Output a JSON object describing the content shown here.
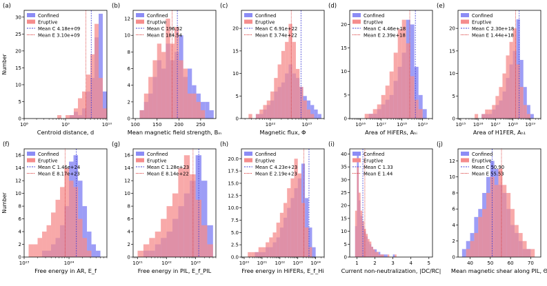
{
  "colors": {
    "confined": "#8c8cf5",
    "eruptive": "#f58c8c",
    "conf_line": "#3b3bd6",
    "erup_line": "#d62a2a"
  },
  "ylabel": "Number",
  "legend_labels": [
    "Confined",
    "Eruptive"
  ],
  "chart_data": [
    {
      "panel": "(a)",
      "type": "bar",
      "xlabel": "Centroid distance, d",
      "scale": "log",
      "xlim": [
        100000000.0,
        10000000000.0
      ],
      "ylim": [
        0,
        32
      ],
      "yticks": [
        0,
        5,
        10,
        15,
        20,
        25,
        30
      ],
      "xticks": [
        {
          "v": 100000000.0,
          "t": "10⁸"
        },
        {
          "v": 1000000000.0,
          "t": "10⁹"
        },
        {
          "v": 10000000000.0,
          "t": "10¹⁰"
        }
      ],
      "bin_edges": [
        8.8,
        8.9,
        9.0,
        9.1,
        9.2,
        9.3,
        9.4,
        9.5,
        9.6,
        9.7,
        9.8,
        9.9,
        10.0
      ],
      "series": [
        {
          "name": "Confined",
          "values": [
            0,
            0,
            0,
            1,
            2,
            1,
            3,
            8,
            12,
            24,
            31,
            8,
            2
          ]
        },
        {
          "name": "Eruptive",
          "values": [
            1,
            0,
            1,
            1,
            3,
            6,
            8,
            13,
            19,
            28,
            12,
            3,
            0
          ]
        }
      ],
      "means": [
        {
          "label": "Mean C 4.18e+09",
          "value": 4180000000.0
        },
        {
          "label": "Mean E 3.10e+09",
          "value": 3100000000.0
        }
      ]
    },
    {
      "panel": "(b)",
      "type": "bar",
      "xlabel": "Mean magnetic field strength, Bₘ",
      "scale": "linear",
      "xlim": [
        95,
        285
      ],
      "ylim": [
        0,
        13
      ],
      "yticks": [
        0,
        2,
        4,
        6,
        8,
        10,
        12
      ],
      "xticks": [
        {
          "v": 100,
          "t": "100"
        },
        {
          "v": 150,
          "t": "150"
        },
        {
          "v": 200,
          "t": "200"
        },
        {
          "v": 250,
          "t": "250"
        }
      ],
      "bin_edges": [
        110,
        120,
        130,
        140,
        150,
        160,
        170,
        180,
        190,
        200,
        210,
        220,
        230,
        240,
        250,
        260,
        270,
        280
      ],
      "series": [
        {
          "name": "Confined",
          "values": [
            1,
            2,
            3,
            5,
            7,
            6,
            9,
            7,
            8,
            10,
            5,
            6,
            4,
            3,
            2,
            2,
            1
          ]
        },
        {
          "name": "Eruptive",
          "values": [
            1,
            3,
            5,
            7,
            9,
            8,
            12,
            9,
            11,
            7,
            6,
            3,
            3,
            2,
            1,
            0,
            0
          ]
        }
      ],
      "means": [
        {
          "label": "Mean C 196.52",
          "value": 196.52
        },
        {
          "label": "Mean E 184.54",
          "value": 184.54
        }
      ]
    },
    {
      "panel": "(c)",
      "type": "bar",
      "xlabel": "Magnetic flux, Φ",
      "scale": "log",
      "xlim": [
        1.6e+21,
        3e+23
      ],
      "ylim": [
        0,
        24
      ],
      "yticks": [
        0,
        5,
        10,
        15,
        20
      ],
      "xticks": [
        {
          "v": 1e+22,
          "t": "10²²"
        },
        {
          "v": 1e+23,
          "t": "10²³"
        }
      ],
      "bin_edges": [
        21.4,
        21.5,
        21.6,
        21.7,
        21.8,
        21.9,
        22.0,
        22.1,
        22.2,
        22.3,
        22.4,
        22.5,
        22.6,
        22.7,
        22.8,
        22.9,
        23.0,
        23.1,
        23.2,
        23.3,
        23.4
      ],
      "series": [
        {
          "name": "Confined",
          "values": [
            0,
            0,
            1,
            1,
            2,
            3,
            4,
            6,
            7,
            8,
            10,
            12,
            10,
            9,
            7,
            5,
            4,
            3,
            2,
            1
          ]
        },
        {
          "name": "Eruptive",
          "values": [
            1,
            0,
            1,
            2,
            3,
            4,
            6,
            9,
            12,
            15,
            17,
            21,
            17,
            11,
            7,
            4,
            2,
            1,
            0,
            0
          ]
        }
      ],
      "means": [
        {
          "label": "Mean C 6.91e+22",
          "value": 6.91e+22
        },
        {
          "label": "Mean E 3.74e+22",
          "value": 3.74e+22
        }
      ]
    },
    {
      "panel": "(d)",
      "type": "bar",
      "xlabel": "Area of HiFERs, Aₕᵢ",
      "scale": "log",
      "xlim": [
        3000000000000000.0,
        3e+19
      ],
      "ylim": [
        0,
        23
      ],
      "yticks": [
        0,
        5,
        10,
        15,
        20
      ],
      "xticks": [
        {
          "v": 1e+16,
          "t": "10¹⁶"
        },
        {
          "v": 1e+17,
          "t": "10¹⁷"
        },
        {
          "v": 1e+18,
          "t": "10¹⁸"
        },
        {
          "v": 1e+19,
          "t": "10¹⁹"
        }
      ],
      "bin_edges": [
        16.2,
        16.4,
        16.6,
        16.8,
        17.0,
        17.2,
        17.4,
        17.6,
        17.8,
        18.0,
        18.2,
        18.4,
        18.6,
        18.8,
        19.0,
        19.2
      ],
      "series": [
        {
          "name": "Confined",
          "values": [
            0,
            1,
            1,
            2,
            3,
            4,
            5,
            8,
            11,
            14,
            21,
            20,
            11,
            5,
            2
          ]
        },
        {
          "name": "Eruptive",
          "values": [
            1,
            1,
            2,
            3,
            5,
            7,
            10,
            14,
            19,
            21,
            16,
            9,
            4,
            2,
            0
          ]
        }
      ],
      "means": [
        {
          "label": "Mean C 4.46e+18",
          "value": 4.46e+18
        },
        {
          "label": "Mean E 2.39e+18",
          "value": 2.39e+18
        }
      ]
    },
    {
      "panel": "(e)",
      "type": "bar",
      "xlabel": "Area of H1FER, Aₕ₁",
      "scale": "log",
      "xlim": [
        700000000000000.0,
        4e+19
      ],
      "ylim": [
        0,
        24
      ],
      "yticks": [
        0,
        5,
        10,
        15,
        20
      ],
      "xticks": [
        {
          "v": 1000000000000000.0,
          "t": "10¹⁵"
        },
        {
          "v": 1e+16,
          "t": "10¹⁶"
        },
        {
          "v": 1e+17,
          "t": "10¹⁷"
        },
        {
          "v": 1e+18,
          "t": "10¹⁸"
        },
        {
          "v": 1e+19,
          "t": "10¹⁹"
        }
      ],
      "bin_edges": [
        15.8,
        16.0,
        16.2,
        16.4,
        16.6,
        16.8,
        17.0,
        17.2,
        17.4,
        17.6,
        17.8,
        18.0,
        18.2,
        18.4,
        18.6,
        18.8,
        19.0,
        19.2
      ],
      "series": [
        {
          "name": "Confined",
          "values": [
            0,
            0,
            1,
            1,
            1,
            2,
            3,
            4,
            6,
            9,
            12,
            15,
            22,
            13,
            7,
            3,
            1
          ]
        },
        {
          "name": "Eruptive",
          "values": [
            1,
            0,
            1,
            2,
            2,
            3,
            5,
            7,
            10,
            14,
            17,
            20,
            12,
            7,
            3,
            1,
            0
          ]
        }
      ],
      "means": [
        {
          "label": "Mean C 2.30e+18",
          "value": 2.3e+18
        },
        {
          "label": "Mean E 1.44e+18",
          "value": 1.44e+18
        }
      ]
    },
    {
      "panel": "(f)",
      "type": "bar",
      "xlabel": "Free energy in AR, E_f",
      "scale": "log",
      "xlim": [
        1e+23,
        7e+24
      ],
      "ylim": [
        0,
        17
      ],
      "yticks": [
        0,
        2,
        4,
        6,
        8,
        10,
        12,
        14,
        16
      ],
      "xticks": [
        {
          "v": 1e+23,
          "t": "10²³"
        },
        {
          "v": 1e+24,
          "t": "10²⁴"
        }
      ],
      "bin_edges": [
        23.1,
        23.2,
        23.3,
        23.4,
        23.5,
        23.6,
        23.7,
        23.8,
        23.9,
        24.0,
        24.1,
        24.2,
        24.3,
        24.4,
        24.5,
        24.6,
        24.7
      ],
      "series": [
        {
          "name": "Confined",
          "values": [
            0,
            0,
            0,
            1,
            1,
            2,
            3,
            5,
            8,
            15,
            16,
            12,
            8,
            4,
            2,
            1
          ]
        },
        {
          "name": "Eruptive",
          "values": [
            2,
            2,
            3,
            4,
            5,
            7,
            9,
            11,
            14,
            12,
            11,
            6,
            3,
            1,
            0,
            0
          ]
        }
      ],
      "means": [
        {
          "label": "Mean C 1.46e+24",
          "value": 1.46e+24
        },
        {
          "label": "Mean E 8.17e+23",
          "value": 8.17e+23
        }
      ]
    },
    {
      "panel": "(g)",
      "type": "bar",
      "xlabel": "Free energy in PIL, E_f_PIL",
      "scale": "log",
      "xlim": [
        7e+20,
        5e+23
      ],
      "ylim": [
        0,
        17
      ],
      "yticks": [
        0,
        2,
        4,
        6,
        8,
        10,
        12,
        14,
        16
      ],
      "xticks": [
        {
          "v": 1e+21,
          "t": "10²¹"
        },
        {
          "v": 1e+22,
          "t": "10²²"
        },
        {
          "v": 1e+23,
          "t": "10²³"
        }
      ],
      "bin_edges": [
        21.0,
        21.2,
        21.4,
        21.6,
        21.8,
        22.0,
        22.2,
        22.4,
        22.6,
        22.8,
        23.0,
        23.2,
        23.4,
        23.6
      ],
      "series": [
        {
          "name": "Confined",
          "values": [
            0,
            1,
            1,
            2,
            3,
            4,
            6,
            8,
            10,
            12,
            16,
            12,
            5
          ]
        },
        {
          "name": "Eruptive",
          "values": [
            1,
            2,
            3,
            4,
            6,
            8,
            10,
            14,
            16,
            13,
            9,
            5,
            2
          ]
        }
      ],
      "means": [
        {
          "label": "Mean C 1.28e+23",
          "value": 1.28e+23
        },
        {
          "label": "Mean E 8.14e+22",
          "value": 8.14e+22
        }
      ]
    },
    {
      "panel": "(h)",
      "type": "bar",
      "xlabel": "Free energy in HiFERs, E_f_Hi",
      "scale": "log",
      "xlim": [
        7e+19,
        3e+24
      ],
      "ylim": [
        0,
        22
      ],
      "yticks": [
        0,
        2.5,
        5,
        7.5,
        10,
        12.5,
        15,
        17.5,
        20
      ],
      "ytick_labels": [
        "0.0",
        "2.5",
        "5.0",
        "7.5",
        "10.0",
        "12.5",
        "15.0",
        "17.5",
        "20.0"
      ],
      "xticks": [
        {
          "v": 1e+20,
          "t": "10²⁰"
        },
        {
          "v": 1e+21,
          "t": "10²¹"
        },
        {
          "v": 1e+22,
          "t": "10²²"
        },
        {
          "v": 1e+23,
          "t": "10²³"
        },
        {
          "v": 1e+24,
          "t": "10²⁴"
        }
      ],
      "bin_edges": [
        20.2,
        20.4,
        20.6,
        20.8,
        21.0,
        21.2,
        21.4,
        21.6,
        21.8,
        22.0,
        22.2,
        22.4,
        22.6,
        22.8,
        23.0,
        23.2,
        23.4,
        23.6,
        23.8,
        24.0
      ],
      "series": [
        {
          "name": "Confined",
          "values": [
            0,
            0,
            1,
            1,
            1,
            2,
            2,
            3,
            4,
            6,
            8,
            10,
            12,
            14,
            16,
            19,
            12,
            6,
            2
          ]
        },
        {
          "name": "Eruptive",
          "values": [
            1,
            1,
            1,
            2,
            2,
            3,
            4,
            5,
            7,
            9,
            11,
            14,
            16,
            20,
            17,
            11,
            6,
            2,
            0
          ]
        }
      ],
      "means": [
        {
          "label": "Mean C 4.23e+23",
          "value": 4.23e+23
        },
        {
          "label": "Mean E 2.19e+23",
          "value": 2.19e+23
        }
      ]
    },
    {
      "panel": "(i)",
      "type": "bar",
      "xlabel": "Current non-neutralization, |DC/RC|",
      "scale": "linear",
      "xlim": [
        0.6,
        5.2
      ],
      "ylim": [
        0,
        42
      ],
      "yticks": [
        0,
        5,
        10,
        15,
        20,
        25,
        30,
        35,
        40
      ],
      "xticks": [
        {
          "v": 1,
          "t": "1"
        },
        {
          "v": 2,
          "t": "2"
        },
        {
          "v": 3,
          "t": "3"
        },
        {
          "v": 4,
          "t": "4"
        },
        {
          "v": 5,
          "t": "5"
        }
      ],
      "bin_edges": [
        0.9,
        1.0,
        1.1,
        1.2,
        1.3,
        1.4,
        1.5,
        1.6,
        1.7,
        1.8,
        1.9,
        2.0,
        2.1,
        2.2,
        2.3,
        2.4,
        2.5,
        2.6,
        2.7,
        2.8,
        2.9,
        3.0,
        3.1,
        3.2
      ],
      "series": [
        {
          "name": "Confined",
          "values": [
            12,
            40,
            22,
            16,
            12,
            10,
            8,
            6,
            5,
            4,
            3,
            3,
            2,
            2,
            1,
            1,
            1,
            1,
            0,
            0,
            0,
            1,
            0
          ]
        },
        {
          "name": "Eruptive",
          "values": [
            18,
            35,
            25,
            18,
            14,
            11,
            9,
            7,
            6,
            4,
            3,
            2,
            2,
            1,
            1,
            1,
            0,
            0,
            1,
            0,
            0,
            0,
            1
          ]
        }
      ],
      "means": [
        {
          "label": "Mean C 1.33",
          "value": 1.33
        },
        {
          "label": "Mean E 1.44",
          "value": 1.44
        }
      ]
    },
    {
      "panel": "(j)",
      "type": "bar",
      "xlabel": "Mean magnetic shear along PIL, Θ",
      "scale": "linear",
      "xlim": [
        34,
        75
      ],
      "ylim": [
        0,
        13.5
      ],
      "yticks": [
        0,
        2,
        4,
        6,
        8,
        10,
        12
      ],
      "xticks": [
        {
          "v": 40,
          "t": "40"
        },
        {
          "v": 50,
          "t": "50"
        },
        {
          "v": 60,
          "t": "60"
        },
        {
          "v": 70,
          "t": "70"
        }
      ],
      "bin_edges": [
        36,
        38,
        40,
        42,
        44,
        46,
        48,
        50,
        52,
        54,
        56,
        58,
        60,
        62,
        64,
        66,
        68,
        70,
        72
      ],
      "series": [
        {
          "name": "Confined",
          "values": [
            1,
            2,
            3,
            5,
            6,
            8,
            10,
            12,
            11,
            9,
            8,
            6,
            4,
            3,
            2,
            1,
            1,
            0
          ]
        },
        {
          "name": "Eruptive",
          "values": [
            0,
            1,
            2,
            3,
            5,
            6,
            8,
            10,
            9,
            11,
            9,
            8,
            6,
            4,
            3,
            2,
            1,
            1
          ]
        }
      ],
      "means": [
        {
          "label": "Mean C 50.90",
          "value": 50.9
        },
        {
          "label": "Mean E 55.53",
          "value": 55.53
        }
      ]
    }
  ]
}
